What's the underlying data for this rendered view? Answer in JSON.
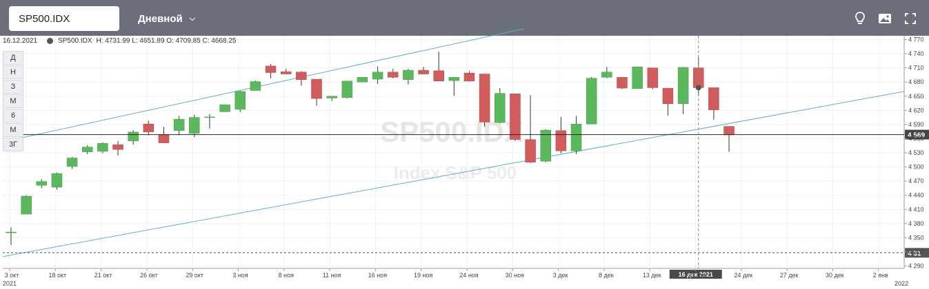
{
  "toolbar": {
    "symbol": "SP500.IDX",
    "period": "Дневной",
    "icons": [
      "lightbulb-icon",
      "image-icon",
      "fullscreen-icon"
    ]
  },
  "info": {
    "date": "16.12.2021",
    "symbol": "SP500.IDX",
    "ohlc": "H: 4731.99 L: 4651.89 O: 4709.85 C: 4668.25"
  },
  "period_buttons": [
    "Д",
    "Н",
    "З",
    "М",
    "6",
    "М",
    "3Г"
  ],
  "colors": {
    "up": "#5cb85c",
    "down": "#d05c5c",
    "trend": "#5ab0c8",
    "toolbar": "#6b6f7a"
  },
  "chart_data": {
    "type": "candlestick",
    "watermark": {
      "title": "SP500.IDX",
      "subtitle": "Index S&P 500"
    },
    "y_axis": {
      "range": [
        4285,
        4778
      ],
      "ticks": [
        4290,
        4320,
        4350,
        4380,
        4410,
        4440,
        4470,
        4500,
        4530,
        4560,
        4590,
        4620,
        4650,
        4680,
        4710,
        4740,
        4770
      ],
      "current_price_label": "4 569",
      "current_price": 4568.5,
      "left_marker_label": "4 31",
      "left_marker_price": 4318
    },
    "x_axis": {
      "labels": [
        "3 окт",
        "18 окт",
        "21 окт",
        "26 окт",
        "29 окт",
        "3 ноя",
        "8 ноя",
        "11 ноя",
        "16 ноя",
        "19 ноя",
        "24 ноя",
        "30 ноя",
        "3 дек",
        "8 дек",
        "13 дек",
        "21 дек",
        "24 дек",
        "27 дек",
        "30 дек",
        "2 янв"
      ],
      "year_left": "2021",
      "year_right": "2022",
      "crosshair_label": "16 дек 2021"
    },
    "candles": [
      {
        "o": 4362,
        "h": 4372,
        "l": 4335,
        "c": 4362
      },
      {
        "o": 4400,
        "h": 4440,
        "l": 4400,
        "c": 4438
      },
      {
        "o": 4461,
        "h": 4474,
        "l": 4455,
        "c": 4469
      },
      {
        "o": 4457,
        "h": 4488,
        "l": 4452,
        "c": 4486
      },
      {
        "o": 4501,
        "h": 4521,
        "l": 4496,
        "c": 4519
      },
      {
        "o": 4532,
        "h": 4546,
        "l": 4527,
        "c": 4542
      },
      {
        "o": 4533,
        "h": 4552,
        "l": 4529,
        "c": 4550
      },
      {
        "o": 4547,
        "h": 4555,
        "l": 4524,
        "c": 4537
      },
      {
        "o": 4555,
        "h": 4578,
        "l": 4547,
        "c": 4574
      },
      {
        "o": 4591,
        "h": 4598,
        "l": 4567,
        "c": 4574
      },
      {
        "o": 4568,
        "h": 4585,
        "l": 4551,
        "c": 4551
      },
      {
        "o": 4577,
        "h": 4608,
        "l": 4567,
        "c": 4601
      },
      {
        "o": 4571,
        "h": 4611,
        "l": 4563,
        "c": 4605
      },
      {
        "o": 4606,
        "h": 4612,
        "l": 4581,
        "c": 4606
      },
      {
        "o": 4617,
        "h": 4632,
        "l": 4617,
        "c": 4632
      },
      {
        "o": 4622,
        "h": 4662,
        "l": 4616,
        "c": 4660
      },
      {
        "o": 4662,
        "h": 4683,
        "l": 4662,
        "c": 4681
      },
      {
        "o": 4714,
        "h": 4718,
        "l": 4688,
        "c": 4700
      },
      {
        "o": 4702,
        "h": 4708,
        "l": 4697,
        "c": 4697
      },
      {
        "o": 4701,
        "h": 4703,
        "l": 4672,
        "c": 4685
      },
      {
        "o": 4686,
        "h": 4686,
        "l": 4630,
        "c": 4645
      },
      {
        "o": 4646,
        "h": 4650,
        "l": 4640,
        "c": 4650
      },
      {
        "o": 4647,
        "h": 4680,
        "l": 4645,
        "c": 4682
      },
      {
        "o": 4680,
        "h": 4690,
        "l": 4680,
        "c": 4690
      },
      {
        "o": 4686,
        "h": 4713,
        "l": 4676,
        "c": 4701
      },
      {
        "o": 4701,
        "h": 4708,
        "l": 4688,
        "c": 4690
      },
      {
        "o": 4685,
        "h": 4708,
        "l": 4675,
        "c": 4705
      },
      {
        "o": 4705,
        "h": 4712,
        "l": 4697,
        "c": 4697
      },
      {
        "o": 4704,
        "h": 4744,
        "l": 4682,
        "c": 4682
      },
      {
        "o": 4683,
        "h": 4690,
        "l": 4651,
        "c": 4690
      },
      {
        "o": 4699,
        "h": 4703,
        "l": 4681,
        "c": 4682
      },
      {
        "o": 4697,
        "h": 4697,
        "l": 4585,
        "c": 4595
      },
      {
        "o": 4594,
        "h": 4667,
        "l": 4592,
        "c": 4656
      },
      {
        "o": 4655,
        "h": 4655,
        "l": 4555,
        "c": 4558
      },
      {
        "o": 4558,
        "h": 4652,
        "l": 4508,
        "c": 4510
      },
      {
        "o": 4512,
        "h": 4580,
        "l": 4510,
        "c": 4578
      },
      {
        "o": 4577,
        "h": 4606,
        "l": 4529,
        "c": 4534
      },
      {
        "o": 4534,
        "h": 4608,
        "l": 4527,
        "c": 4591
      },
      {
        "o": 4591,
        "h": 4691,
        "l": 4591,
        "c": 4688
      },
      {
        "o": 4690,
        "h": 4712,
        "l": 4688,
        "c": 4701
      },
      {
        "o": 4690,
        "h": 4690,
        "l": 4665,
        "c": 4667
      },
      {
        "o": 4666,
        "h": 4713,
        "l": 4666,
        "c": 4712
      },
      {
        "o": 4710,
        "h": 4710,
        "l": 4665,
        "c": 4668
      },
      {
        "o": 4667,
        "h": 4667,
        "l": 4609,
        "c": 4634
      },
      {
        "o": 4634,
        "h": 4712,
        "l": 4612,
        "c": 4711
      },
      {
        "o": 4710,
        "h": 4732,
        "l": 4652,
        "c": 4668
      },
      {
        "o": 4668,
        "h": 4668,
        "l": 4600,
        "c": 4621
      },
      {
        "o": 4586,
        "h": 4586,
        "l": 4532,
        "c": 4568
      }
    ]
  }
}
